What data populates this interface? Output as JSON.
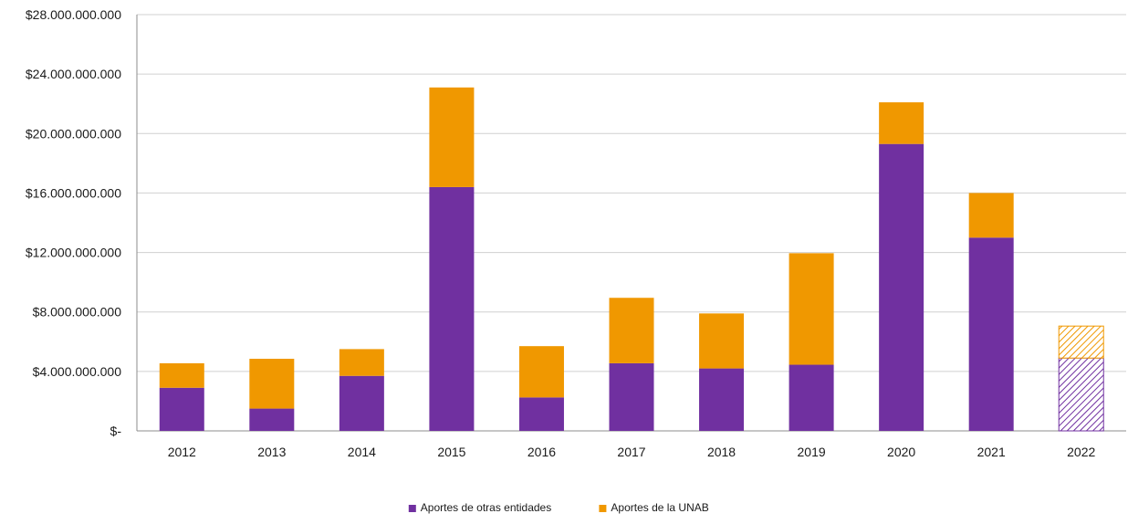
{
  "chart_data": {
    "type": "bar",
    "stacked": true,
    "categories": [
      "2012",
      "2013",
      "2014",
      "2015",
      "2016",
      "2017",
      "2018",
      "2019",
      "2020",
      "2021",
      "2022"
    ],
    "series": [
      {
        "name": "Aportes de otras entidades",
        "color": "#7030A0",
        "values": [
          2900000000,
          1500000000,
          3700000000,
          16400000000,
          2250000000,
          4550000000,
          4200000000,
          4450000000,
          19300000000,
          13000000000,
          4900000000
        ]
      },
      {
        "name": "Aportes de la UNAB",
        "color": "#F09800",
        "values": [
          1650000000,
          3350000000,
          1800000000,
          6700000000,
          3450000000,
          4400000000,
          3700000000,
          7500000000,
          2800000000,
          3000000000,
          2150000000
        ]
      }
    ],
    "hatched_categories": [
      "2022"
    ],
    "ylim": [
      0,
      28000000000
    ],
    "yticks": [
      0,
      4000000000,
      8000000000,
      12000000000,
      16000000000,
      20000000000,
      24000000000,
      28000000000
    ],
    "ytick_labels": [
      "$-",
      "$4.000.000.000",
      "$8.000.000.000",
      "$12.000.000.000",
      "$16.000.000.000",
      "$20.000.000.000",
      "$24.000.000.000",
      "$28.000.000.000"
    ],
    "grid": true,
    "legend_position": "bottom-center",
    "title": "",
    "xlabel": "",
    "ylabel": ""
  }
}
